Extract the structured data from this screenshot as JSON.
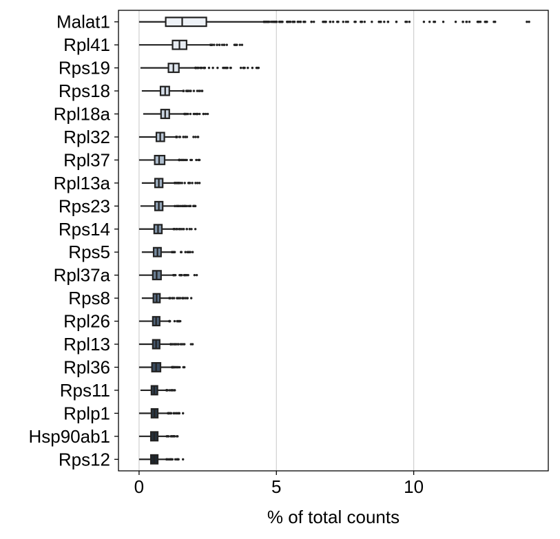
{
  "chart_data": {
    "type": "box",
    "orientation": "horizontal",
    "xlabel": "% of total counts",
    "xlim": [
      -0.75,
      14.9
    ],
    "xticks": [
      0,
      5,
      10
    ],
    "grid": "vertical",
    "categories": [
      "Malat1",
      "Rpl41",
      "Rps19",
      "Rps18",
      "Rpl18a",
      "Rpl32",
      "Rpl37",
      "Rpl13a",
      "Rps23",
      "Rps14",
      "Rps5",
      "Rpl37a",
      "Rps8",
      "Rpl26",
      "Rpl13",
      "Rpl36",
      "Rps11",
      "Rplp1",
      "Hsp90ab1",
      "Rps12"
    ],
    "boxes": [
      {
        "min": 0.0,
        "q1": 0.97,
        "median": 1.57,
        "q3": 2.45,
        "whisker_high": 4.55,
        "max": 14.2
      },
      {
        "min": 0.0,
        "q1": 1.22,
        "median": 1.47,
        "q3": 1.73,
        "whisker_high": 2.6,
        "max": 3.75
      },
      {
        "min": 0.05,
        "q1": 1.07,
        "median": 1.25,
        "q3": 1.45,
        "whisker_high": 2.05,
        "max": 4.35
      },
      {
        "min": 0.1,
        "q1": 0.78,
        "median": 0.95,
        "q3": 1.1,
        "whisker_high": 1.6,
        "max": 2.3
      },
      {
        "min": 0.15,
        "q1": 0.8,
        "median": 0.95,
        "q3": 1.1,
        "whisker_high": 1.65,
        "max": 2.5
      },
      {
        "min": 0.0,
        "q1": 0.63,
        "median": 0.77,
        "q3": 0.92,
        "whisker_high": 1.35,
        "max": 2.15
      },
      {
        "min": 0.0,
        "q1": 0.57,
        "median": 0.73,
        "q3": 0.93,
        "whisker_high": 1.45,
        "max": 2.2
      },
      {
        "min": 0.1,
        "q1": 0.58,
        "median": 0.72,
        "q3": 0.86,
        "whisker_high": 1.3,
        "max": 2.2
      },
      {
        "min": 0.05,
        "q1": 0.58,
        "median": 0.72,
        "q3": 0.86,
        "whisker_high": 1.3,
        "max": 2.05
      },
      {
        "min": 0.0,
        "q1": 0.55,
        "median": 0.69,
        "q3": 0.83,
        "whisker_high": 1.25,
        "max": 2.05
      },
      {
        "min": 0.1,
        "q1": 0.53,
        "median": 0.67,
        "q3": 0.8,
        "whisker_high": 1.2,
        "max": 1.95
      },
      {
        "min": 0.0,
        "q1": 0.5,
        "median": 0.64,
        "q3": 0.8,
        "whisker_high": 1.25,
        "max": 2.1
      },
      {
        "min": 0.1,
        "q1": 0.52,
        "median": 0.64,
        "q3": 0.76,
        "whisker_high": 1.1,
        "max": 1.9
      },
      {
        "min": 0.0,
        "q1": 0.5,
        "median": 0.62,
        "q3": 0.75,
        "whisker_high": 1.1,
        "max": 1.5
      },
      {
        "min": 0.0,
        "q1": 0.5,
        "median": 0.62,
        "q3": 0.75,
        "whisker_high": 1.15,
        "max": 1.95
      },
      {
        "min": 0.0,
        "q1": 0.47,
        "median": 0.62,
        "q3": 0.78,
        "whisker_high": 1.2,
        "max": 1.65
      },
      {
        "min": 0.05,
        "q1": 0.45,
        "median": 0.55,
        "q3": 0.67,
        "whisker_high": 1.0,
        "max": 1.3
      },
      {
        "min": 0.0,
        "q1": 0.45,
        "median": 0.56,
        "q3": 0.68,
        "whisker_high": 1.05,
        "max": 1.6
      },
      {
        "min": 0.0,
        "q1": 0.43,
        "median": 0.55,
        "q3": 0.68,
        "whisker_high": 1.0,
        "max": 1.4
      },
      {
        "min": 0.0,
        "q1": 0.43,
        "median": 0.55,
        "q3": 0.68,
        "whisker_high": 1.0,
        "max": 1.6
      }
    ],
    "box_colors": [
      "#eef2f7",
      "#e7ecf2",
      "#dee5ed",
      "#d4dde8",
      "#c8d3e0",
      "#bbc8d7",
      "#aebdcd",
      "#a0b1c3",
      "#92a4b7",
      "#8497ab",
      "#768a9f",
      "#697d92",
      "#5c7086",
      "#506379",
      "#44566b",
      "#3a4b5e",
      "#314151",
      "#2a3845",
      "#242f3a",
      "#1f2830"
    ]
  }
}
